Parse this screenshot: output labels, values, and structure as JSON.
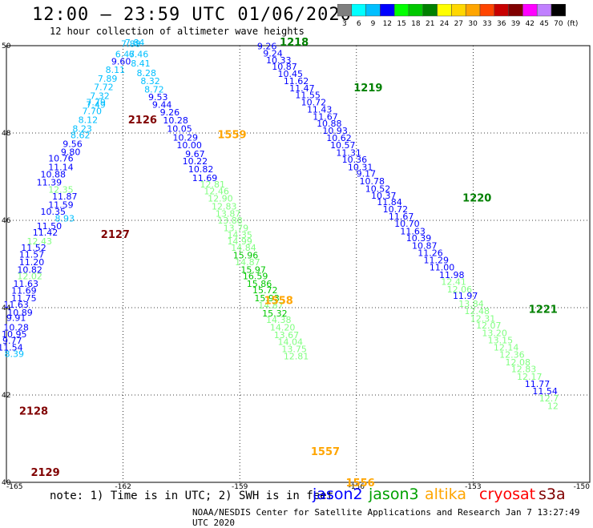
{
  "header": {
    "title": "12:00 – 23:59 UTC 01/06/2020",
    "subtitle": "12 hour collection of altimeter wave heights"
  },
  "colorbar": {
    "labels": [
      "3",
      "6",
      "9",
      "12",
      "15",
      "18",
      "21",
      "24",
      "27",
      "30",
      "33",
      "36",
      "39",
      "42",
      "45",
      "70"
    ],
    "unit": "(ft)",
    "colors": [
      "#7f7f7f",
      "#00ffff",
      "#00bfff",
      "#0000ff",
      "#00ff00",
      "#00c800",
      "#008000",
      "#ffff00",
      "#ffd700",
      "#ffa500",
      "#ff4500",
      "#c80000",
      "#800000",
      "#ff00ff",
      "#c080ff",
      "#000000"
    ]
  },
  "axes": {
    "lat_labels": [
      "50",
      "48",
      "46",
      "44",
      "42",
      "40"
    ],
    "lon_labels": [
      "-165",
      "-162",
      "-159",
      "-156",
      "-153",
      "-150"
    ]
  },
  "chart_data": {
    "type": "scatter",
    "lat_range": [
      40,
      50
    ],
    "lon_range": [
      -165,
      -150
    ],
    "tracks": [
      {
        "label": "2126",
        "color": "#800000",
        "lat": 48.22,
        "lon": -161.5
      },
      {
        "label": "2127",
        "color": "#800000",
        "lat": 45.6,
        "lon": -162.2
      },
      {
        "label": "2128",
        "color": "#800000",
        "lat": 41.55,
        "lon": -164.3
      },
      {
        "label": "2129",
        "color": "#800000",
        "lat": 40.15,
        "lon": -164.0
      },
      {
        "label": "1559",
        "color": "#ffa500",
        "lat": 47.88,
        "lon": -159.2
      },
      {
        "label": "1558",
        "color": "#ffa500",
        "lat": 44.08,
        "lon": -158.0
      },
      {
        "label": "1557",
        "color": "#ffa500",
        "lat": 40.62,
        "lon": -156.8
      },
      {
        "label": "1556",
        "color": "#ffa500",
        "lat": 39.91,
        "lon": -155.9
      },
      {
        "label": "1218",
        "color": "#008000",
        "lat": 50.0,
        "lon": -157.6
      },
      {
        "label": "1219",
        "color": "#008000",
        "lat": 48.95,
        "lon": -155.7
      },
      {
        "label": "1220",
        "color": "#008000",
        "lat": 46.43,
        "lon": -152.9
      },
      {
        "label": "1221",
        "color": "#008000",
        "lat": 43.88,
        "lon": -151.2
      }
    ],
    "points": [
      {
        "v": "7.84",
        "c": "#00bfff",
        "lat": 50.0,
        "lon": -161.7
      },
      {
        "v": "7.88",
        "c": "#00bfff",
        "lat": 49.97,
        "lon": -161.8
      },
      {
        "v": "6.46",
        "c": "#00bfff",
        "lat": 49.73,
        "lon": -161.6
      },
      {
        "v": "6.47",
        "c": "#00bfff",
        "lat": 49.73,
        "lon": -161.95
      },
      {
        "v": "9.60",
        "c": "#0000ff",
        "lat": 49.57,
        "lon": -162.05
      },
      {
        "v": "8.41",
        "c": "#00bfff",
        "lat": 49.52,
        "lon": -161.55
      },
      {
        "v": "8.11",
        "c": "#00bfff",
        "lat": 49.38,
        "lon": -162.2
      },
      {
        "v": "8.28",
        "c": "#00bfff",
        "lat": 49.3,
        "lon": -161.4
      },
      {
        "v": "7.89",
        "c": "#00bfff",
        "lat": 49.17,
        "lon": -162.4
      },
      {
        "v": "8.32",
        "c": "#00bfff",
        "lat": 49.12,
        "lon": -161.3
      },
      {
        "v": "7.72",
        "c": "#00bfff",
        "lat": 48.98,
        "lon": -162.5
      },
      {
        "v": "8.72",
        "c": "#00bfff",
        "lat": 48.93,
        "lon": -161.2
      },
      {
        "v": "7.32",
        "c": "#00bfff",
        "lat": 48.78,
        "lon": -162.6
      },
      {
        "v": "9.53",
        "c": "#0000ff",
        "lat": 48.75,
        "lon": -161.1
      },
      {
        "v": "7.79",
        "c": "#00bfff",
        "lat": 48.63,
        "lon": -162.7
      },
      {
        "v": "7.49",
        "c": "#00bfff",
        "lat": 48.58,
        "lon": -162.7
      },
      {
        "v": "9.44",
        "c": "#0000ff",
        "lat": 48.58,
        "lon": -161.0
      },
      {
        "v": "7.70",
        "c": "#00bfff",
        "lat": 48.43,
        "lon": -162.8
      },
      {
        "v": "9.26",
        "c": "#0000ff",
        "lat": 48.4,
        "lon": -160.8
      },
      {
        "v": "8.12",
        "c": "#00bfff",
        "lat": 48.23,
        "lon": -162.9
      },
      {
        "v": "10.28",
        "c": "#0000ff",
        "lat": 48.22,
        "lon": -160.65
      },
      {
        "v": "8.23",
        "c": "#00bfff",
        "lat": 48.03,
        "lon": -163.05
      },
      {
        "v": "10.05",
        "c": "#0000ff",
        "lat": 48.03,
        "lon": -160.55
      },
      {
        "v": "8.62",
        "c": "#00bfff",
        "lat": 47.88,
        "lon": -163.1
      },
      {
        "v": "10.29",
        "c": "#0000ff",
        "lat": 47.83,
        "lon": -160.4
      },
      {
        "v": "9.56",
        "c": "#0000ff",
        "lat": 47.68,
        "lon": -163.3
      },
      {
        "v": "10.00",
        "c": "#0000ff",
        "lat": 47.65,
        "lon": -160.3
      },
      {
        "v": "9.80",
        "c": "#0000ff",
        "lat": 47.5,
        "lon": -163.35
      },
      {
        "v": "9.67",
        "c": "#0000ff",
        "lat": 47.45,
        "lon": -160.15
      },
      {
        "v": "10.76",
        "c": "#0000ff",
        "lat": 47.35,
        "lon": -163.6
      },
      {
        "v": "10.22",
        "c": "#0000ff",
        "lat": 47.28,
        "lon": -160.15
      },
      {
        "v": "11.14",
        "c": "#0000ff",
        "lat": 47.15,
        "lon": -163.6
      },
      {
        "v": "10.82",
        "c": "#0000ff",
        "lat": 47.1,
        "lon": -160.0
      },
      {
        "v": "10.88",
        "c": "#0000ff",
        "lat": 46.98,
        "lon": -163.8
      },
      {
        "v": "11.69",
        "c": "#0000ff",
        "lat": 46.9,
        "lon": -159.9
      },
      {
        "v": "11.39",
        "c": "#0000ff",
        "lat": 46.8,
        "lon": -163.9
      },
      {
        "v": "12.81",
        "c": "#80ff80",
        "lat": 46.75,
        "lon": -159.7
      },
      {
        "v": "12.35",
        "c": "#80ff80",
        "lat": 46.63,
        "lon": -163.6
      },
      {
        "v": "12.46",
        "c": "#80ff80",
        "lat": 46.6,
        "lon": -159.6
      },
      {
        "v": "11.87",
        "c": "#0000ff",
        "lat": 46.48,
        "lon": -163.5
      },
      {
        "v": "12.90",
        "c": "#80ff80",
        "lat": 46.43,
        "lon": -159.5
      },
      {
        "v": "11.59",
        "c": "#0000ff",
        "lat": 46.28,
        "lon": -163.6
      },
      {
        "v": "12.83",
        "c": "#80ff80",
        "lat": 46.25,
        "lon": -159.4
      },
      {
        "v": "10.35",
        "c": "#0000ff",
        "lat": 46.13,
        "lon": -163.8
      },
      {
        "v": "13.87",
        "c": "#80ff80",
        "lat": 46.08,
        "lon": -159.3
      },
      {
        "v": "8.93",
        "c": "#00bfff",
        "lat": 45.97,
        "lon": -163.5
      },
      {
        "v": "13.88",
        "c": "#80ff80",
        "lat": 45.93,
        "lon": -159.25
      },
      {
        "v": "11.50",
        "c": "#0000ff",
        "lat": 45.8,
        "lon": -163.9
      },
      {
        "v": "13.79",
        "c": "#80ff80",
        "lat": 45.75,
        "lon": -159.1
      },
      {
        "v": "11.42",
        "c": "#0000ff",
        "lat": 45.65,
        "lon": -164.0
      },
      {
        "v": "14.35",
        "c": "#80ff80",
        "lat": 45.6,
        "lon": -159.0
      },
      {
        "v": "12.43",
        "c": "#80ff80",
        "lat": 45.45,
        "lon": -164.15
      },
      {
        "v": "14.99",
        "c": "#80ff80",
        "lat": 45.45,
        "lon": -159.0
      },
      {
        "v": "11.52",
        "c": "#0000ff",
        "lat": 45.3,
        "lon": -164.3
      },
      {
        "v": "14.84",
        "c": "#80ff80",
        "lat": 45.3,
        "lon": -158.9
      },
      {
        "v": "11.57",
        "c": "#0000ff",
        "lat": 45.15,
        "lon": -164.35
      },
      {
        "v": "15.96",
        "c": "#00c800",
        "lat": 45.13,
        "lon": -158.85
      },
      {
        "v": "11.20",
        "c": "#0000ff",
        "lat": 44.97,
        "lon": -164.35
      },
      {
        "v": "14.87",
        "c": "#80ff80",
        "lat": 44.97,
        "lon": -158.8
      },
      {
        "v": "10.82",
        "c": "#0000ff",
        "lat": 44.8,
        "lon": -164.4
      },
      {
        "v": "15.97",
        "c": "#00c800",
        "lat": 44.8,
        "lon": -158.65
      },
      {
        "v": "12.02",
        "c": "#80ff80",
        "lat": 44.65,
        "lon": -164.4
      },
      {
        "v": "16.59",
        "c": "#00c800",
        "lat": 44.65,
        "lon": -158.6
      },
      {
        "v": "11.63",
        "c": "#0000ff",
        "lat": 44.48,
        "lon": -164.5
      },
      {
        "v": "15.86",
        "c": "#00c800",
        "lat": 44.48,
        "lon": -158.5
      },
      {
        "v": "11.69",
        "c": "#0000ff",
        "lat": 44.32,
        "lon": -164.55
      },
      {
        "v": "15.72",
        "c": "#00c800",
        "lat": 44.33,
        "lon": -158.35
      },
      {
        "v": "11.75",
        "c": "#0000ff",
        "lat": 44.15,
        "lon": -164.55
      },
      {
        "v": "15.93",
        "c": "#00c800",
        "lat": 44.15,
        "lon": -158.3
      },
      {
        "v": "11.63",
        "c": "#0000ff",
        "lat": 44.0,
        "lon": -164.75
      },
      {
        "v": "14.87",
        "c": "#80ff80",
        "lat": 43.98,
        "lon": -158.2
      },
      {
        "v": "10.89",
        "c": "#0000ff",
        "lat": 43.82,
        "lon": -164.65
      },
      {
        "v": "15.32",
        "c": "#00c800",
        "lat": 43.8,
        "lon": -158.1
      },
      {
        "v": "9.91",
        "c": "#0000ff",
        "lat": 43.7,
        "lon": -164.75
      },
      {
        "v": "14.38",
        "c": "#80ff80",
        "lat": 43.65,
        "lon": -158.0
      },
      {
        "v": "10.28",
        "c": "#0000ff",
        "lat": 43.48,
        "lon": -164.75
      },
      {
        "v": "14.20",
        "c": "#80ff80",
        "lat": 43.48,
        "lon": -157.9
      },
      {
        "v": "10.95",
        "c": "#0000ff",
        "lat": 43.32,
        "lon": -164.8
      },
      {
        "v": "13.67",
        "c": "#80ff80",
        "lat": 43.3,
        "lon": -157.8
      },
      {
        "v": "9.77",
        "c": "#0000ff",
        "lat": 43.17,
        "lon": -164.85
      },
      {
        "v": "14.04",
        "c": "#80ff80",
        "lat": 43.15,
        "lon": -157.7
      },
      {
        "v": "11.54",
        "c": "#0000ff",
        "lat": 43.02,
        "lon": -164.9
      },
      {
        "v": "13.75",
        "c": "#80ff80",
        "lat": 42.98,
        "lon": -157.6
      },
      {
        "v": "8.39",
        "c": "#00bfff",
        "lat": 42.87,
        "lon": -164.8
      },
      {
        "v": "12.81",
        "c": "#80ff80",
        "lat": 42.82,
        "lon": -157.55
      },
      {
        "v": "9.26",
        "c": "#0000ff",
        "lat": 49.92,
        "lon": -158.3
      },
      {
        "v": "9.24",
        "c": "#0000ff",
        "lat": 49.75,
        "lon": -158.15
      },
      {
        "v": "10.33",
        "c": "#0000ff",
        "lat": 49.6,
        "lon": -158.0
      },
      {
        "v": "10.87",
        "c": "#0000ff",
        "lat": 49.45,
        "lon": -157.85
      },
      {
        "v": "10.45",
        "c": "#0000ff",
        "lat": 49.28,
        "lon": -157.7
      },
      {
        "v": "11.62",
        "c": "#0000ff",
        "lat": 49.12,
        "lon": -157.55
      },
      {
        "v": "11.47",
        "c": "#0000ff",
        "lat": 48.95,
        "lon": -157.4
      },
      {
        "v": "11.55",
        "c": "#0000ff",
        "lat": 48.8,
        "lon": -157.25
      },
      {
        "v": "10.72",
        "c": "#0000ff",
        "lat": 48.63,
        "lon": -157.1
      },
      {
        "v": "11.43",
        "c": "#0000ff",
        "lat": 48.47,
        "lon": -156.95
      },
      {
        "v": "11.67",
        "c": "#0000ff",
        "lat": 48.3,
        "lon": -156.8
      },
      {
        "v": "10.88",
        "c": "#0000ff",
        "lat": 48.15,
        "lon": -156.7
      },
      {
        "v": "10.93",
        "c": "#0000ff",
        "lat": 47.98,
        "lon": -156.55
      },
      {
        "v": "10.62",
        "c": "#0000ff",
        "lat": 47.82,
        "lon": -156.45
      },
      {
        "v": "10.57",
        "c": "#0000ff",
        "lat": 47.65,
        "lon": -156.35
      },
      {
        "v": "11.31",
        "c": "#0000ff",
        "lat": 47.48,
        "lon": -156.2
      },
      {
        "v": "10.36",
        "c": "#0000ff",
        "lat": 47.32,
        "lon": -156.05
      },
      {
        "v": "10.31",
        "c": "#0000ff",
        "lat": 47.15,
        "lon": -155.9
      },
      {
        "v": "9.17",
        "c": "#0000ff",
        "lat": 47.0,
        "lon": -155.75
      },
      {
        "v": "10.78",
        "c": "#0000ff",
        "lat": 46.83,
        "lon": -155.6
      },
      {
        "v": "10.52",
        "c": "#0000ff",
        "lat": 46.65,
        "lon": -155.45
      },
      {
        "v": "10.37",
        "c": "#0000ff",
        "lat": 46.5,
        "lon": -155.3
      },
      {
        "v": "11.84",
        "c": "#0000ff",
        "lat": 46.35,
        "lon": -155.15
      },
      {
        "v": "10.72",
        "c": "#0000ff",
        "lat": 46.18,
        "lon": -155.0
      },
      {
        "v": "11.67",
        "c": "#0000ff",
        "lat": 46.02,
        "lon": -154.85
      },
      {
        "v": "10.70",
        "c": "#0000ff",
        "lat": 45.85,
        "lon": -154.7
      },
      {
        "v": "11.63",
        "c": "#0000ff",
        "lat": 45.68,
        "lon": -154.55
      },
      {
        "v": "10.39",
        "c": "#0000ff",
        "lat": 45.52,
        "lon": -154.4
      },
      {
        "v": "10.87",
        "c": "#0000ff",
        "lat": 45.35,
        "lon": -154.25
      },
      {
        "v": "11.26",
        "c": "#0000ff",
        "lat": 45.18,
        "lon": -154.1
      },
      {
        "v": "11.29",
        "c": "#0000ff",
        "lat": 45.02,
        "lon": -153.95
      },
      {
        "v": "11.00",
        "c": "#0000ff",
        "lat": 44.85,
        "lon": -153.8
      },
      {
        "v": "11.98",
        "c": "#0000ff",
        "lat": 44.68,
        "lon": -153.55
      },
      {
        "v": "12.41",
        "c": "#80ff80",
        "lat": 44.52,
        "lon": -153.5
      },
      {
        "v": "12.06",
        "c": "#80ff80",
        "lat": 44.35,
        "lon": -153.35
      },
      {
        "v": "11.97",
        "c": "#0000ff",
        "lat": 44.2,
        "lon": -153.2
      },
      {
        "v": "13.84",
        "c": "#80ff80",
        "lat": 44.02,
        "lon": -153.05
      },
      {
        "v": "12.48",
        "c": "#80ff80",
        "lat": 43.85,
        "lon": -152.9
      },
      {
        "v": "12.31",
        "c": "#80ff80",
        "lat": 43.68,
        "lon": -152.75
      },
      {
        "v": "12.07",
        "c": "#80ff80",
        "lat": 43.52,
        "lon": -152.6
      },
      {
        "v": "13.20",
        "c": "#80ff80",
        "lat": 43.35,
        "lon": -152.45
      },
      {
        "v": "13.15",
        "c": "#80ff80",
        "lat": 43.18,
        "lon": -152.3
      },
      {
        "v": "12.14",
        "c": "#80ff80",
        "lat": 43.02,
        "lon": -152.15
      },
      {
        "v": "12.36",
        "c": "#80ff80",
        "lat": 42.85,
        "lon": -152.0
      },
      {
        "v": "12.08",
        "c": "#80ff80",
        "lat": 42.68,
        "lon": -151.85
      },
      {
        "v": "12.83",
        "c": "#80ff80",
        "lat": 42.52,
        "lon": -151.7
      },
      {
        "v": "12.17",
        "c": "#80ff80",
        "lat": 42.35,
        "lon": -151.55
      },
      {
        "v": "11.77",
        "c": "#0000ff",
        "lat": 42.18,
        "lon": -151.35
      },
      {
        "v": "11.54",
        "c": "#0000ff",
        "lat": 42.02,
        "lon": -151.15
      },
      {
        "v": "12.7",
        "c": "#80ff80",
        "lat": 41.85,
        "lon": -151.05
      },
      {
        "v": "12",
        "c": "#80ff80",
        "lat": 41.68,
        "lon": -150.95
      }
    ]
  },
  "footer": {
    "note": "note:  1) Time is in UTC;  2) SWH is in feet",
    "credit": "NOAA/NESDIS Center for Satellite Applications and Research   Jan  7 13:27:49 UTC 2020",
    "legend": [
      {
        "label": "jason2",
        "color": "#0000ff"
      },
      {
        "label": "jason3",
        "color": "#00a000"
      },
      {
        "label": "altika",
        "color": "#ffa500"
      },
      {
        "label": "cryosat",
        "color": "#ff0000"
      },
      {
        "label": "s3a",
        "color": "#800000"
      }
    ]
  }
}
